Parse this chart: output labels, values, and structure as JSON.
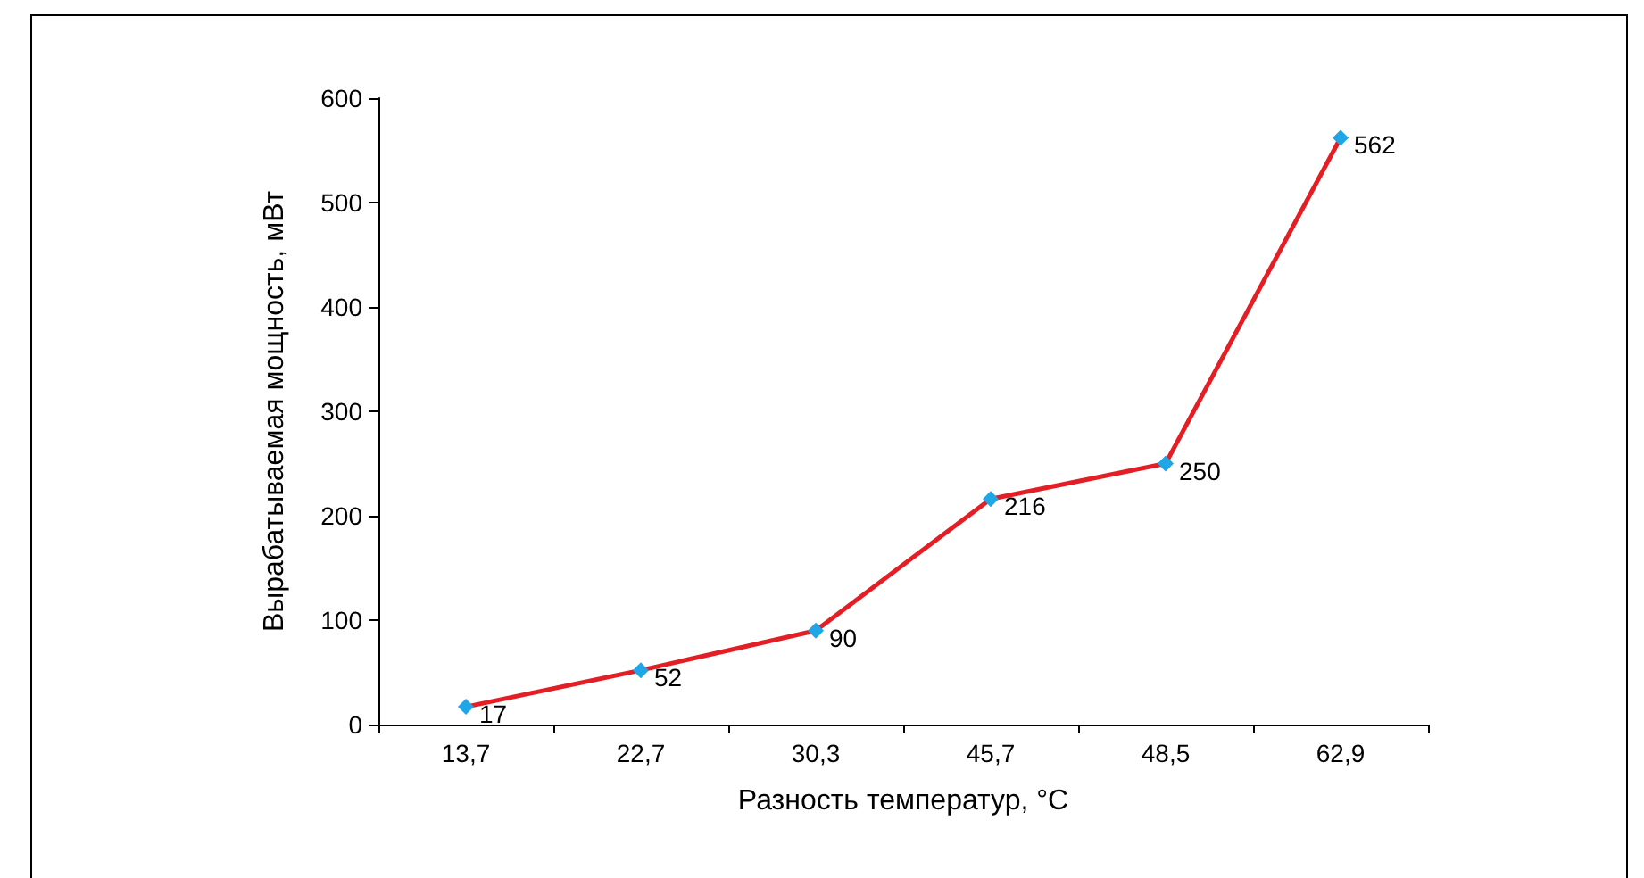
{
  "chart_data": {
    "type": "line",
    "xlabel": "Разность температур, °C",
    "ylabel": "Вырабатываемая мощность, мВт",
    "categories": [
      "13,7",
      "22,7",
      "30,3",
      "45,7",
      "48,5",
      "62,9"
    ],
    "series": [
      {
        "color": "#e31e24",
        "values": [
          17,
          52,
          90,
          216,
          250,
          562
        ]
      }
    ],
    "ylim": [
      0,
      600
    ],
    "yticks": [
      0,
      100,
      200,
      300,
      400,
      500,
      600
    ],
    "grid": false,
    "marker": "diamond",
    "line_style": "solid",
    "data_labels": true
  }
}
